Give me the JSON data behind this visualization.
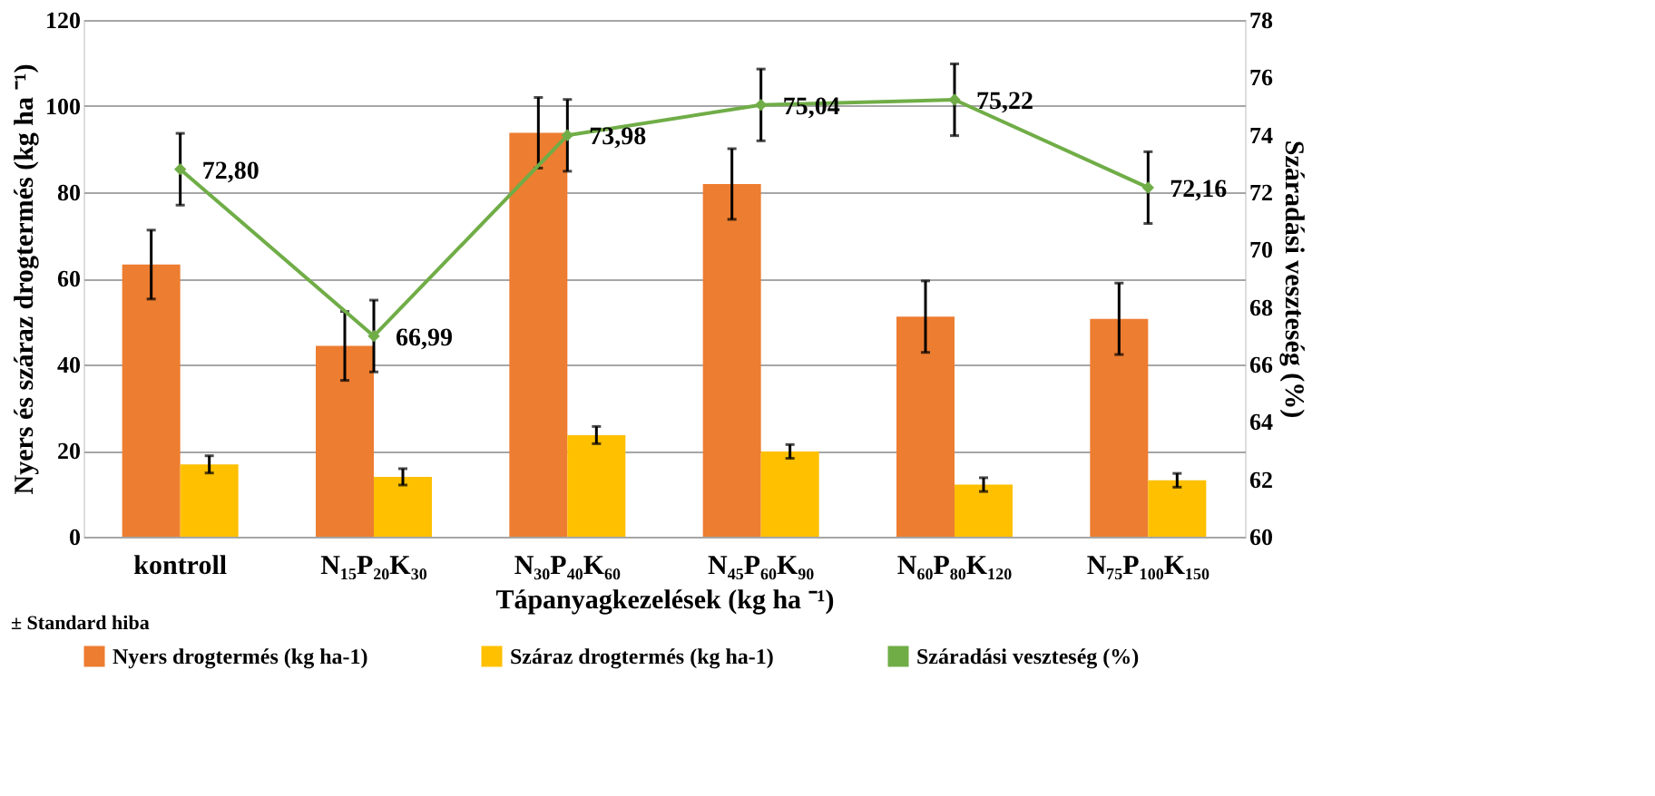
{
  "chart_data": {
    "type": "bar",
    "xlabel": "Tápanyagkezelések (kg ha ⁻¹)",
    "ylabel": "Nyers és száraz drogtermés (kg ha ⁻¹)",
    "y2label": "Száradási veszteség (%)",
    "categories": [
      "kontroll",
      "N₁₅P₂₀K₃₀",
      "N₃₀P₄₀K₆₀",
      "N₄₅P₆₀K₉₀",
      "N₆₀P₈₀K₁₂₀",
      "N₇₅P₁₀₀K₁₅₀"
    ],
    "series": [
      {
        "name": "Nyers drogtermés (kg ha-1)",
        "color": "#ed7d31",
        "values": [
          63.2,
          44.3,
          93.8,
          81.9,
          51.1,
          50.6
        ],
        "errors": [
          8,
          8,
          8.2,
          8.2,
          8.3,
          8.3
        ]
      },
      {
        "name": "Száraz drogtermés (kg ha-1)",
        "color": "#ffc000",
        "values": [
          16.8,
          13.9,
          23.6,
          19.8,
          12.1,
          13.1
        ],
        "errors": [
          2,
          1.9,
          2,
          1.6,
          1.6,
          1.6
        ]
      },
      {
        "name": "Száradási veszteség (%)",
        "type": "line",
        "axis": "y2",
        "color": "#70ad47",
        "marker": "diamond",
        "values": [
          72.8,
          66.99,
          73.98,
          75.04,
          75.22,
          72.16
        ],
        "errors": [
          1.25,
          1.25,
          1.25,
          1.25,
          1.25,
          1.25
        ],
        "value_labels": [
          "72,80",
          "66,99",
          "73,98",
          "75,04",
          "75,22",
          "72,16"
        ]
      }
    ],
    "ylim": [
      0,
      120
    ],
    "yticks": [
      0,
      20,
      40,
      60,
      80,
      100,
      120
    ],
    "y2lim": [
      60,
      78
    ],
    "y2ticks": [
      60,
      62,
      64,
      66,
      68,
      70,
      72,
      74,
      76,
      78
    ],
    "grid": "y",
    "legend": "bottom",
    "annotations": [
      "± Standard hiba"
    ]
  }
}
